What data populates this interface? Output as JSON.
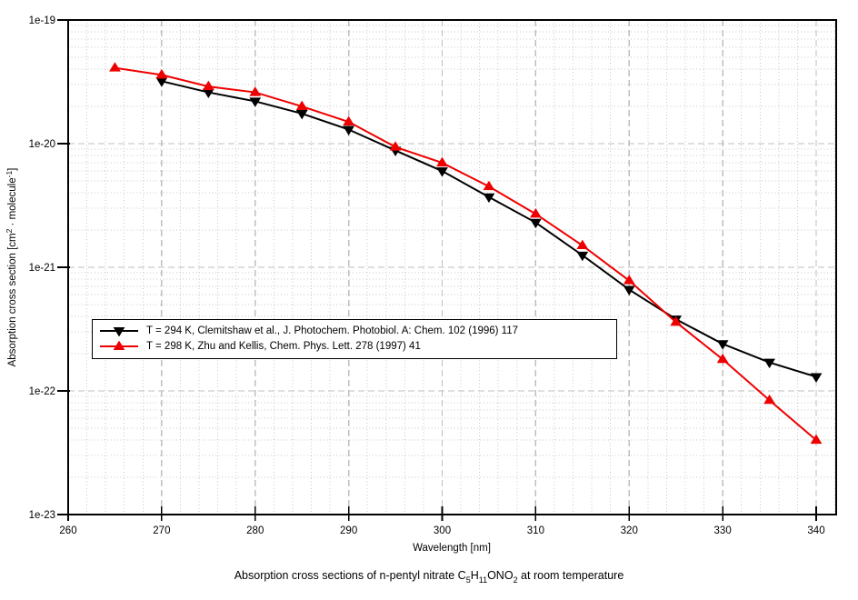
{
  "chart_data": {
    "type": "line",
    "title": "Absorption cross sections of n-pentyl nitrate C5H11ONO2 at room temperature",
    "xlabel": "Wavelength [nm]",
    "ylabel": "Absorption cross section [cm2 · molecule-1]",
    "ylabel_segments": [
      {
        "t": "Absorption cross section [cm"
      },
      {
        "t": "2",
        "sup": true
      },
      {
        "t": " · molecule"
      },
      {
        "t": "-1",
        "sup": true
      },
      {
        "t": "]"
      }
    ],
    "caption_segments": [
      {
        "t": "Absorption cross sections of n-pentyl nitrate C"
      },
      {
        "t": "5",
        "sub": true
      },
      {
        "t": "H"
      },
      {
        "t": "11",
        "sub": true
      },
      {
        "t": "ONO"
      },
      {
        "t": "2",
        "sub": true
      },
      {
        "t": " at room temperature"
      }
    ],
    "x_axis": {
      "min": 260,
      "max": 342.2,
      "minor_step": 2,
      "ticks": [
        {
          "label": "260",
          "value": 260
        },
        {
          "label": "270",
          "value": 270
        },
        {
          "label": "280",
          "value": 280
        },
        {
          "label": "290",
          "value": 290
        },
        {
          "label": "300",
          "value": 300
        },
        {
          "label": "310",
          "value": 310
        },
        {
          "label": "320",
          "value": 320
        },
        {
          "label": "330",
          "value": 330
        },
        {
          "label": "340",
          "value": 340
        }
      ]
    },
    "y_axis": {
      "scale": "log",
      "min": 1e-23,
      "max": 1e-19,
      "ticks": [
        {
          "label": "1e-19",
          "value": 1e-19
        },
        {
          "label": "1e-20",
          "value": 1e-20
        },
        {
          "label": "1e-21",
          "value": 1e-21
        },
        {
          "label": "1e-22",
          "value": 1e-22
        },
        {
          "label": "1e-23",
          "value": 1e-23
        }
      ]
    },
    "grid": {
      "major_color": "#bfbfbf",
      "minor_color": "#c8c8c8",
      "major_on": true,
      "minor_on": true
    },
    "legend_position": "inside-left-middle",
    "series": [
      {
        "name": "clemitshaw-294k",
        "label": "T = 294 K, Clemitshaw et al., J. Photochem. Photobiol. A: Chem. 102 (1996) 117",
        "color": "#000000",
        "marker": "triangle-down",
        "x": [
          270,
          275,
          280,
          285,
          290,
          295,
          300,
          305,
          310,
          315,
          320,
          325,
          330,
          335,
          340
        ],
        "y": [
          3.2e-20,
          2.6e-20,
          2.2e-20,
          1.75e-20,
          1.3e-20,
          8.8e-21,
          6e-21,
          3.7e-21,
          2.3e-21,
          1.25e-21,
          6.6e-22,
          3.8e-22,
          2.4e-22,
          1.7e-22,
          1.3e-22
        ]
      },
      {
        "name": "zhu-kellis-298k",
        "label": "T = 298 K, Zhu and Kellis, Chem. Phys. Lett. 278 (1997) 41",
        "color": "#ee0000",
        "marker": "triangle-up",
        "x": [
          265,
          270,
          275,
          280,
          285,
          290,
          295,
          300,
          305,
          310,
          315,
          320,
          325,
          330,
          335,
          340
        ],
        "y": [
          4.1e-20,
          3.6e-20,
          2.9e-20,
          2.6e-20,
          2e-20,
          1.5e-20,
          9.4e-21,
          7e-21,
          4.5e-21,
          2.7e-21,
          1.5e-21,
          7.8e-22,
          3.6e-22,
          1.8e-22,
          8.4e-23,
          4e-23
        ]
      }
    ]
  }
}
